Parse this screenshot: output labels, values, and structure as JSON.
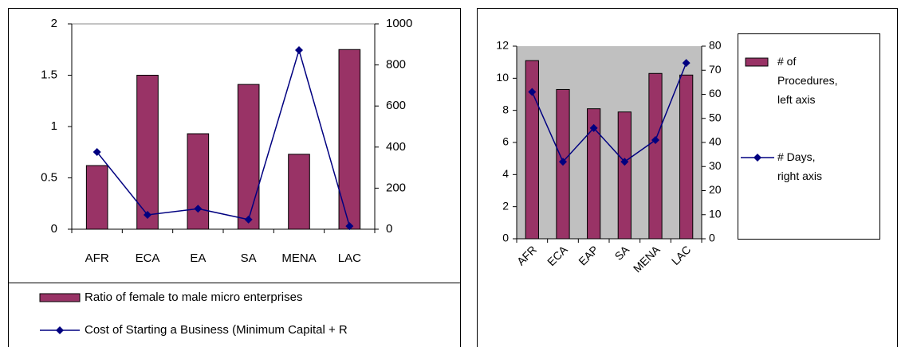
{
  "chart_data": [
    {
      "type": "bar",
      "categories": [
        "AFR",
        "ECA",
        "EA",
        "SA",
        "MENA",
        "LAC"
      ],
      "series": [
        {
          "name": "Ratio of female to male micro enterprises",
          "type": "bar",
          "color": "#993366",
          "values": [
            0.62,
            1.5,
            0.93,
            1.41,
            0.73,
            1.75
          ]
        },
        {
          "name": "Cost of Starting a Business (Minimum Capital + R",
          "type": "line",
          "color": "#000080",
          "axis": "y2",
          "values": [
            376,
            70,
            100,
            47,
            872,
            15
          ]
        }
      ],
      "ylim": [
        0,
        2
      ],
      "yticks": [
        0,
        0.5,
        1,
        1.5,
        2
      ],
      "y2lim": [
        0,
        1000
      ],
      "y2ticks": [
        0,
        200,
        400,
        600,
        800,
        1000
      ],
      "legend": "bottom",
      "plot_background": "#ffffff"
    },
    {
      "type": "bar",
      "categories": [
        "AFR",
        "ECA",
        "EAP",
        "SA",
        "MENA",
        "LAC"
      ],
      "series": [
        {
          "name": "# of Procedures, left axis",
          "type": "bar",
          "color": "#993366",
          "values": [
            11.1,
            9.3,
            8.1,
            7.9,
            10.3,
            10.2
          ]
        },
        {
          "name": "# Days, right axis",
          "type": "line",
          "color": "#000080",
          "axis": "y2",
          "values": [
            61,
            32,
            46,
            32,
            41,
            73
          ]
        }
      ],
      "ylim": [
        0,
        12
      ],
      "yticks": [
        0,
        2,
        4,
        6,
        8,
        10,
        12
      ],
      "y2lim": [
        0,
        80
      ],
      "y2ticks": [
        0,
        10,
        20,
        30,
        40,
        50,
        60,
        70,
        80
      ],
      "legend": "right",
      "plot_background": "#c0c0c0"
    }
  ]
}
